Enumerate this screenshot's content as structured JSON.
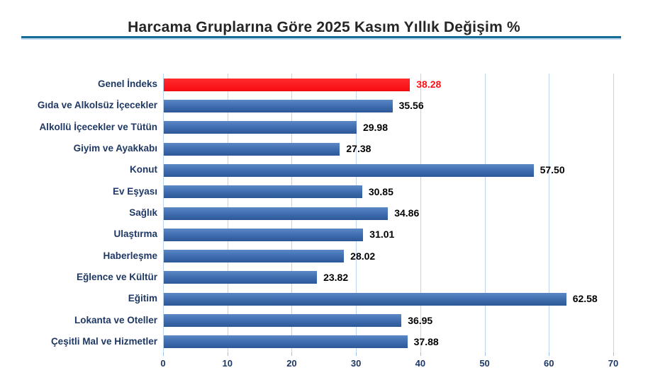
{
  "header": {
    "title": "Harcama Gruplarına Göre 2025 Kasım Yıllık Değişim %",
    "underline_color": "#166e96",
    "underline_shadow_color": "#bdd7ee"
  },
  "chart_data": {
    "type": "bar",
    "orientation": "horizontal",
    "title": "Harcama Gruplarına Göre 2025 Kasım Yıllık Değişim %",
    "categories": [
      "Genel İndeks",
      "Gıda ve Alkolsüz İçecekler",
      "Alkollü İçecekler ve Tütün",
      "Giyim ve Ayakkabı",
      "Konut",
      "Ev Eşyası",
      "Sağlık",
      "Ulaştırma",
      "Haberleşme",
      "Eğlence ve Kültür",
      "Eğitim",
      "Lokanta ve Oteller",
      "Çeşitli Mal ve Hizmetler"
    ],
    "values": [
      38.28,
      35.56,
      29.98,
      27.38,
      57.5,
      30.85,
      34.86,
      31.01,
      28.02,
      23.82,
      62.58,
      36.95,
      37.88
    ],
    "value_labels": [
      "38.28",
      "35.56",
      "29.98",
      "27.38",
      "57.50",
      "30.85",
      "34.86",
      "31.01",
      "28.02",
      "23.82",
      "62.58",
      "36.95",
      "37.88"
    ],
    "highlight_index": 0,
    "xlabel": "",
    "ylabel": "",
    "xlim": [
      0,
      70
    ],
    "xticks": [
      0,
      10,
      20,
      30,
      40,
      50,
      60,
      70
    ],
    "grid": true,
    "legend_position": "none",
    "colors": {
      "bar_gradient_top": "#5b87c5",
      "bar_gradient_mid": "#3e6cae",
      "bar_gradient_bottom": "#2f5b9b",
      "bar_border": "#2c5897",
      "highlight_gradient_top": "#ff2a2e",
      "highlight_gradient_bottom": "#f90d13",
      "highlight_border": "#e80b11",
      "gridline": "#bdd6ee",
      "tick": "#9dc3e6",
      "axis_label": "#1f3864",
      "category_label": "#1f3864",
      "value_label": "#000000",
      "highlight_value_label": "#fb1117"
    }
  }
}
